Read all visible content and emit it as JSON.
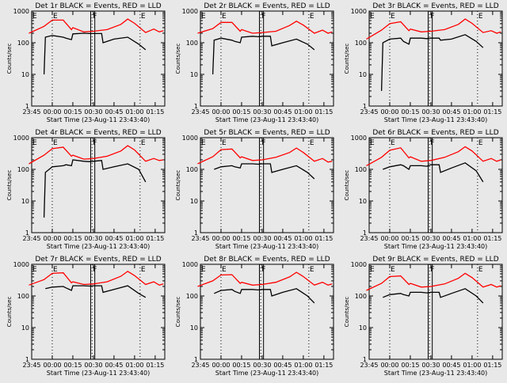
{
  "figure": {
    "background": "#e8e8e8",
    "events_color": "#000000",
    "lld_color": "#ff0000"
  },
  "chart_data": [
    {
      "type": "line",
      "title": "Det 1r BLACK = Events, RED = LLD",
      "xlabel": "Start Time (23-Aug-11 23:43:40)",
      "ylabel": "Counts/sec",
      "yscale": "log",
      "ylim": [
        1,
        1000
      ],
      "xlim": [
        "23:45",
        "01:22"
      ],
      "x_ticks": [
        "23:45",
        "00:00",
        "00:15",
        "00:30",
        "00:45",
        "01:00",
        "01:15"
      ],
      "y_ticks": [
        "1",
        "10",
        "100",
        "1000"
      ],
      "markers": [
        "E",
        "F",
        "E"
      ],
      "series": [
        {
          "name": "Events",
          "color": "#000000",
          "x": [
            "23:43",
            "23:54",
            "23:55",
            "00:00",
            "00:08",
            "00:10",
            "00:14",
            "00:15",
            "00:23",
            "00:27",
            "00:30",
            "00:36",
            "00:37",
            "00:45",
            "00:55",
            "01:03",
            "01:08"
          ],
          "y": [
            null,
            10,
            150,
            170,
            150,
            140,
            125,
            190,
            200,
            195,
            195,
            195,
            100,
            130,
            150,
            90,
            60
          ]
        },
        {
          "name": "LLD",
          "color": "#ff0000",
          "x": [
            "23:43",
            "23:54",
            "00:00",
            "00:08",
            "00:14",
            "00:15",
            "00:23",
            "00:30",
            "00:40",
            "00:50",
            "00:55",
            "01:00",
            "01:08",
            "01:14",
            "01:18",
            "01:21"
          ],
          "y": [
            200,
            330,
            520,
            520,
            260,
            300,
            220,
            230,
            260,
            380,
            560,
            410,
            210,
            270,
            220,
            240
          ]
        }
      ]
    },
    {
      "type": "line",
      "title": "Det 2r BLACK = Events, RED = LLD",
      "xlabel": "Start Time (23-Aug-11 23:43:40)",
      "ylabel": "Counts/sec",
      "yscale": "log",
      "ylim": [
        1,
        1000
      ],
      "xlim": [
        "23:45",
        "01:22"
      ],
      "x_ticks": [
        "23:45",
        "00:00",
        "00:15",
        "00:30",
        "00:45",
        "01:00",
        "01:15"
      ],
      "y_ticks": [
        "1",
        "10",
        "100",
        "1000"
      ],
      "markers": [
        "E",
        "F",
        "E"
      ],
      "series": [
        {
          "name": "Events",
          "color": "#000000",
          "x": [
            "23:43",
            "23:54",
            "23:55",
            "00:00",
            "00:08",
            "00:10",
            "00:14",
            "00:15",
            "00:23",
            "00:27",
            "00:30",
            "00:36",
            "00:37",
            "00:45",
            "00:55",
            "01:03",
            "01:08"
          ],
          "y": [
            null,
            10,
            120,
            140,
            120,
            110,
            100,
            150,
            160,
            155,
            160,
            160,
            80,
            100,
            130,
            90,
            60
          ]
        },
        {
          "name": "LLD",
          "color": "#ff0000",
          "x": [
            "23:43",
            "23:54",
            "00:00",
            "00:08",
            "00:14",
            "00:15",
            "00:23",
            "00:30",
            "00:40",
            "00:50",
            "00:55",
            "01:00",
            "01:08",
            "01:14",
            "01:18",
            "01:21"
          ],
          "y": [
            200,
            280,
            440,
            440,
            230,
            260,
            200,
            210,
            230,
            350,
            480,
            360,
            200,
            250,
            200,
            220
          ]
        }
      ]
    },
    {
      "type": "line",
      "title": "Det 3r BLACK = Events, RED = LLD",
      "xlabel": "Start Time (23-Aug-11 23:43:40)",
      "ylabel": "Counts/sec",
      "yscale": "log",
      "ylim": [
        1,
        1000
      ],
      "xlim": [
        "23:45",
        "01:22"
      ],
      "x_ticks": [
        "23:45",
        "00:00",
        "00:15",
        "00:30",
        "00:45",
        "01:00",
        "01:15"
      ],
      "y_ticks": [
        "1",
        "10",
        "100",
        "1000"
      ],
      "markers": [
        "E",
        "F",
        "E"
      ],
      "series": [
        {
          "name": "Events",
          "color": "#000000",
          "x": [
            "23:43",
            "23:54",
            "23:55",
            "00:00",
            "00:08",
            "00:10",
            "00:14",
            "00:15",
            "00:23",
            "00:27",
            "00:30",
            "00:36",
            "00:37",
            "00:45",
            "00:55",
            "01:03",
            "01:08"
          ],
          "y": [
            null,
            3,
            100,
            130,
            140,
            110,
            90,
            140,
            140,
            135,
            140,
            140,
            120,
            130,
            180,
            110,
            70
          ]
        },
        {
          "name": "LLD",
          "color": "#ff0000",
          "x": [
            "23:43",
            "23:54",
            "00:00",
            "00:08",
            "00:14",
            "00:15",
            "00:23",
            "00:30",
            "00:40",
            "00:50",
            "00:55",
            "01:00",
            "01:08",
            "01:14",
            "01:18",
            "01:21"
          ],
          "y": [
            130,
            250,
            400,
            460,
            240,
            270,
            220,
            230,
            260,
            380,
            560,
            410,
            210,
            240,
            200,
            220
          ]
        }
      ]
    },
    {
      "type": "line",
      "title": "Det 4r BLACK = Events, RED = LLD",
      "xlabel": "Start Time (23-Aug-11 23:43:40)",
      "ylabel": "Counts/sec",
      "yscale": "log",
      "ylim": [
        1,
        1000
      ],
      "xlim": [
        "23:45",
        "01:22"
      ],
      "x_ticks": [
        "23:45",
        "00:00",
        "00:15",
        "00:30",
        "00:45",
        "01:00",
        "01:15"
      ],
      "y_ticks": [
        "1",
        "10",
        "100",
        "1000"
      ],
      "markers": [
        "E",
        "F",
        "E"
      ],
      "series": [
        {
          "name": "Events",
          "color": "#000000",
          "x": [
            "23:43",
            "23:54",
            "23:55",
            "00:00",
            "00:08",
            "00:10",
            "00:14",
            "00:15",
            "00:23",
            "00:27",
            "00:30",
            "00:36",
            "00:37",
            "00:45",
            "00:55",
            "01:03",
            "01:08"
          ],
          "y": [
            null,
            3,
            80,
            120,
            130,
            140,
            130,
            200,
            180,
            175,
            180,
            190,
            100,
            120,
            150,
            100,
            40
          ]
        },
        {
          "name": "LLD",
          "color": "#ff0000",
          "x": [
            "23:43",
            "23:54",
            "00:00",
            "00:08",
            "00:14",
            "00:15",
            "00:23",
            "00:30",
            "00:40",
            "00:50",
            "00:55",
            "01:00",
            "01:08",
            "01:14",
            "01:18",
            "01:21"
          ],
          "y": [
            150,
            280,
            450,
            500,
            260,
            280,
            210,
            220,
            260,
            380,
            560,
            410,
            180,
            220,
            190,
            200
          ]
        }
      ]
    },
    {
      "type": "line",
      "title": "Det 5r BLACK = Events, RED = LLD",
      "xlabel": "Start Time (23-Aug-11 23:43:40)",
      "ylabel": "Counts/sec",
      "yscale": "log",
      "ylim": [
        1,
        1000
      ],
      "xlim": [
        "23:45",
        "01:22"
      ],
      "x_ticks": [
        "23:45",
        "00:00",
        "00:15",
        "00:30",
        "00:45",
        "01:00",
        "01:15"
      ],
      "y_ticks": [
        "1",
        "10",
        "100",
        "1000"
      ],
      "markers": [
        "E",
        "F",
        "E"
      ],
      "series": [
        {
          "name": "Events",
          "color": "#000000",
          "x": [
            "23:43",
            "23:54",
            "23:55",
            "00:00",
            "00:08",
            "00:10",
            "00:14",
            "00:15",
            "00:23",
            "00:27",
            "00:30",
            "00:36",
            "00:37",
            "00:45",
            "00:55",
            "01:03",
            "01:08"
          ],
          "y": [
            null,
            null,
            100,
            120,
            130,
            120,
            110,
            150,
            150,
            145,
            150,
            150,
            80,
            100,
            130,
            80,
            50
          ]
        },
        {
          "name": "LLD",
          "color": "#ff0000",
          "x": [
            "23:43",
            "23:54",
            "00:00",
            "00:08",
            "00:14",
            "00:15",
            "00:23",
            "00:30",
            "00:40",
            "00:50",
            "00:55",
            "01:00",
            "01:08",
            "01:14",
            "01:18",
            "01:21"
          ],
          "y": [
            150,
            250,
            420,
            440,
            230,
            250,
            190,
            200,
            240,
            340,
            470,
            340,
            180,
            220,
            170,
            180
          ]
        }
      ]
    },
    {
      "type": "line",
      "title": "Det 6r BLACK = Events, RED = LLD",
      "xlabel": "Start Time (23-Aug-11 23:43:40)",
      "ylabel": "Counts/sec",
      "yscale": "log",
      "ylim": [
        1,
        1000
      ],
      "xlim": [
        "23:45",
        "01:22"
      ],
      "x_ticks": [
        "23:45",
        "00:00",
        "00:15",
        "00:30",
        "00:45",
        "01:00",
        "01:15"
      ],
      "y_ticks": [
        "1",
        "10",
        "100",
        "1000"
      ],
      "markers": [
        "E",
        "F",
        "E"
      ],
      "series": [
        {
          "name": "Events",
          "color": "#000000",
          "x": [
            "23:43",
            "23:54",
            "23:55",
            "00:00",
            "00:08",
            "00:10",
            "00:14",
            "00:15",
            "00:23",
            "00:27",
            "00:30",
            "00:36",
            "00:37",
            "00:45",
            "00:55",
            "01:03",
            "01:08"
          ],
          "y": [
            null,
            null,
            100,
            120,
            140,
            130,
            100,
            130,
            130,
            125,
            140,
            140,
            80,
            110,
            160,
            90,
            40
          ]
        },
        {
          "name": "LLD",
          "color": "#ff0000",
          "x": [
            "23:43",
            "23:54",
            "00:00",
            "00:08",
            "00:14",
            "00:15",
            "00:23",
            "00:30",
            "00:40",
            "00:50",
            "00:55",
            "01:00",
            "01:08",
            "01:14",
            "01:18",
            "01:21"
          ],
          "y": [
            130,
            240,
            400,
            480,
            230,
            250,
            180,
            190,
            240,
            360,
            520,
            380,
            180,
            220,
            180,
            200
          ]
        }
      ]
    },
    {
      "type": "line",
      "title": "Det 7r BLACK = Events, RED = LLD",
      "xlabel": "Start Time (23-Aug-11 23:43:40)",
      "ylabel": "Counts/sec",
      "yscale": "log",
      "ylim": [
        1,
        1000
      ],
      "xlim": [
        "23:45",
        "01:22"
      ],
      "x_ticks": [
        "23:45",
        "00:00",
        "00:15",
        "00:30",
        "00:45",
        "01:00",
        "01:15"
      ],
      "y_ticks": [
        "1",
        "10",
        "100",
        "1000"
      ],
      "markers": [
        "E",
        "F",
        "E"
      ],
      "series": [
        {
          "name": "Events",
          "color": "#000000",
          "x": [
            "23:43",
            "23:54",
            "23:55",
            "00:00",
            "00:08",
            "00:10",
            "00:14",
            "00:15",
            "00:23",
            "00:27",
            "00:30",
            "00:36",
            "00:37",
            "00:45",
            "00:55",
            "01:03",
            "01:08"
          ],
          "y": [
            null,
            null,
            170,
            190,
            200,
            180,
            150,
            210,
            210,
            205,
            210,
            210,
            130,
            160,
            210,
            120,
            90
          ]
        },
        {
          "name": "LLD",
          "color": "#ff0000",
          "x": [
            "23:43",
            "23:54",
            "00:00",
            "00:08",
            "00:14",
            "00:15",
            "00:23",
            "00:30",
            "00:40",
            "00:50",
            "00:55",
            "01:00",
            "01:08",
            "01:14",
            "01:18",
            "01:21"
          ],
          "y": [
            220,
            330,
            520,
            540,
            260,
            280,
            230,
            240,
            280,
            420,
            600,
            440,
            230,
            280,
            220,
            240
          ]
        }
      ]
    },
    {
      "type": "line",
      "title": "Det 8r BLACK = Events, RED = LLD",
      "xlabel": "Start Time (23-Aug-11 23:43:40)",
      "ylabel": "Counts/sec",
      "yscale": "log",
      "ylim": [
        1,
        1000
      ],
      "xlim": [
        "23:45",
        "01:22"
      ],
      "x_ticks": [
        "23:45",
        "00:00",
        "00:15",
        "00:30",
        "00:45",
        "01:00",
        "01:15"
      ],
      "y_ticks": [
        "1",
        "10",
        "100",
        "1000"
      ],
      "markers": [
        "E",
        "F",
        "E"
      ],
      "series": [
        {
          "name": "Events",
          "color": "#000000",
          "x": [
            "23:43",
            "23:54",
            "23:55",
            "00:00",
            "00:08",
            "00:10",
            "00:14",
            "00:15",
            "00:23",
            "00:27",
            "00:30",
            "00:36",
            "00:37",
            "00:45",
            "00:55",
            "01:03",
            "01:08"
          ],
          "y": [
            null,
            null,
            120,
            150,
            160,
            140,
            120,
            160,
            160,
            155,
            160,
            160,
            100,
            130,
            170,
            100,
            60
          ]
        },
        {
          "name": "LLD",
          "color": "#ff0000",
          "x": [
            "23:43",
            "23:54",
            "00:00",
            "00:08",
            "00:14",
            "00:15",
            "00:23",
            "00:30",
            "00:40",
            "00:50",
            "00:55",
            "01:00",
            "01:08",
            "01:14",
            "01:18",
            "01:21"
          ],
          "y": [
            200,
            300,
            460,
            470,
            250,
            270,
            220,
            230,
            270,
            400,
            560,
            410,
            220,
            270,
            220,
            240
          ]
        }
      ]
    },
    {
      "type": "line",
      "title": "Det 9r BLACK = Events, RED = LLD",
      "xlabel": "Start Time (23-Aug-11 23:43:40)",
      "ylabel": "Counts/sec",
      "yscale": "log",
      "ylim": [
        1,
        1000
      ],
      "xlim": [
        "23:45",
        "01:22"
      ],
      "x_ticks": [
        "23:45",
        "00:00",
        "00:15",
        "00:30",
        "00:45",
        "01:00",
        "01:15"
      ],
      "y_ticks": [
        "1",
        "10",
        "100",
        "1000"
      ],
      "markers": [
        "E",
        "F",
        "E"
      ],
      "series": [
        {
          "name": "Events",
          "color": "#000000",
          "x": [
            "23:43",
            "23:54",
            "23:55",
            "00:00",
            "00:08",
            "00:10",
            "00:14",
            "00:15",
            "00:23",
            "00:27",
            "00:30",
            "00:36",
            "00:37",
            "00:45",
            "00:55",
            "01:03",
            "01:08"
          ],
          "y": [
            null,
            null,
            90,
            110,
            120,
            110,
            100,
            130,
            130,
            125,
            130,
            130,
            90,
            120,
            170,
            100,
            60
          ]
        },
        {
          "name": "LLD",
          "color": "#ff0000",
          "x": [
            "23:43",
            "23:54",
            "00:00",
            "00:08",
            "00:14",
            "00:15",
            "00:23",
            "00:30",
            "00:40",
            "00:50",
            "00:55",
            "01:00",
            "01:08",
            "01:14",
            "01:18",
            "01:21"
          ],
          "y": [
            150,
            250,
            410,
            430,
            230,
            250,
            190,
            200,
            240,
            360,
            520,
            380,
            190,
            230,
            190,
            210
          ]
        }
      ]
    }
  ]
}
